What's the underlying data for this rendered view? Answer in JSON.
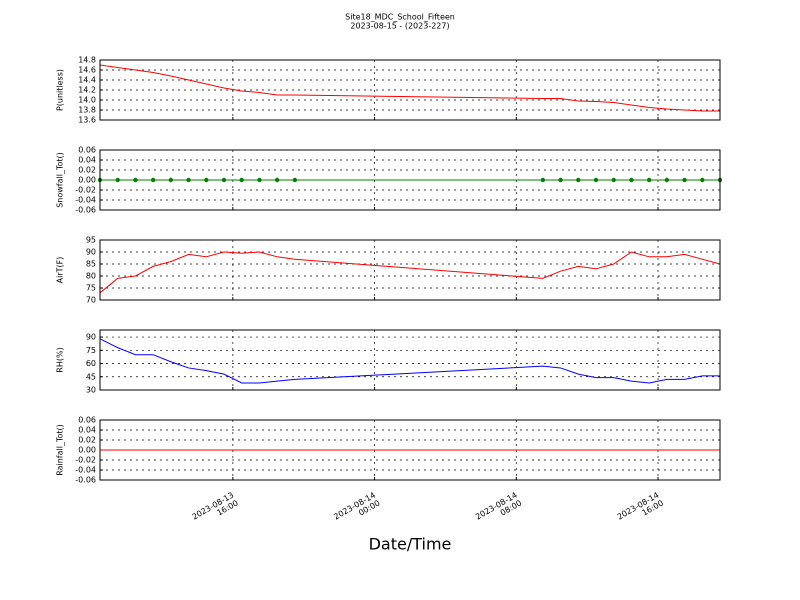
{
  "chart_data": [
    {
      "type": "line",
      "title": "Site18_MDC_School_Fifteen",
      "subtitle": "2023-08-15 - (2023-227)",
      "ylabel": "P(unitless)",
      "x": [
        "2023-08-13 08:30",
        "2023-08-13 09:30",
        "2023-08-13 10:30",
        "2023-08-13 11:30",
        "2023-08-13 12:30",
        "2023-08-13 13:30",
        "2023-08-13 14:30",
        "2023-08-13 15:30",
        "2023-08-13 16:30",
        "2023-08-13 17:30",
        "2023-08-13 18:30",
        "2023-08-13 19:30",
        "2023-08-14 09:30",
        "2023-08-14 10:30",
        "2023-08-14 11:30",
        "2023-08-14 12:30",
        "2023-08-14 13:30",
        "2023-08-14 14:30",
        "2023-08-14 15:30",
        "2023-08-14 16:30",
        "2023-08-14 17:30",
        "2023-08-14 18:30",
        "2023-08-14 19:30"
      ],
      "series": [
        {
          "color": "#ff0000",
          "values": [
            14.7,
            14.65,
            14.6,
            14.55,
            14.48,
            14.4,
            14.32,
            14.24,
            14.18,
            14.15,
            14.1,
            14.1,
            14.03,
            14.03,
            13.98,
            13.97,
            13.95,
            13.9,
            13.85,
            13.82,
            13.8,
            13.78,
            13.78
          ]
        }
      ],
      "xlim": [
        "2023-08-13 08:30",
        "2023-08-14 19:30"
      ],
      "xticks": [
        "2023-08-13 16:00",
        "2023-08-14 00:00",
        "2023-08-14 08:00",
        "2023-08-14 16:00"
      ],
      "ylim": [
        13.6,
        14.8
      ],
      "yticks": [
        {
          "value": 13.6,
          "label": "13.6"
        },
        {
          "value": 13.8,
          "label": "13.8"
        },
        {
          "value": 14.0,
          "label": "14.0"
        },
        {
          "value": 14.2,
          "label": "14.2"
        },
        {
          "value": 14.4,
          "label": "14.4"
        },
        {
          "value": 14.6,
          "label": "14.6"
        },
        {
          "value": 14.8,
          "label": "14.8"
        }
      ],
      "grid": true
    },
    {
      "type": "scatter-line",
      "ylabel": "Snowfall_Tot()",
      "x": [
        "2023-08-13 08:30",
        "2023-08-13 09:30",
        "2023-08-13 10:30",
        "2023-08-13 11:30",
        "2023-08-13 12:30",
        "2023-08-13 13:30",
        "2023-08-13 14:30",
        "2023-08-13 15:30",
        "2023-08-13 16:30",
        "2023-08-13 17:30",
        "2023-08-13 18:30",
        "2023-08-13 19:30",
        "2023-08-14 09:30",
        "2023-08-14 10:30",
        "2023-08-14 11:30",
        "2023-08-14 12:30",
        "2023-08-14 13:30",
        "2023-08-14 14:30",
        "2023-08-14 15:30",
        "2023-08-14 16:30",
        "2023-08-14 17:30",
        "2023-08-14 18:30",
        "2023-08-14 19:30"
      ],
      "series": [
        {
          "color": "#008000",
          "values": [
            0,
            0,
            0,
            0,
            0,
            0,
            0,
            0,
            0,
            0,
            0,
            0,
            0,
            0,
            0,
            0,
            0,
            0,
            0,
            0,
            0,
            0,
            0
          ]
        }
      ],
      "xlim": [
        "2023-08-13 08:30",
        "2023-08-14 19:30"
      ],
      "xticks": [
        "2023-08-13 16:00",
        "2023-08-14 00:00",
        "2023-08-14 08:00",
        "2023-08-14 16:00"
      ],
      "ylim": [
        -0.06,
        0.06
      ],
      "yticks": [
        {
          "value": -0.06,
          "label": "-0.06"
        },
        {
          "value": -0.04,
          "label": "-0.04"
        },
        {
          "value": -0.02,
          "label": "-0.02"
        },
        {
          "value": 0,
          "label": "0.00"
        },
        {
          "value": 0.02,
          "label": "0.02"
        },
        {
          "value": 0.04,
          "label": "0.04"
        },
        {
          "value": 0.06,
          "label": "0.06"
        }
      ],
      "grid": true
    },
    {
      "type": "line",
      "ylabel": "AirT(F)",
      "x": [
        "2023-08-13 08:30",
        "2023-08-13 09:30",
        "2023-08-13 10:30",
        "2023-08-13 11:30",
        "2023-08-13 12:30",
        "2023-08-13 13:30",
        "2023-08-13 14:30",
        "2023-08-13 15:30",
        "2023-08-13 16:30",
        "2023-08-13 17:30",
        "2023-08-13 18:30",
        "2023-08-13 19:30",
        "2023-08-14 09:30",
        "2023-08-14 10:30",
        "2023-08-14 11:30",
        "2023-08-14 12:30",
        "2023-08-14 13:30",
        "2023-08-14 14:30",
        "2023-08-14 15:30",
        "2023-08-14 16:30",
        "2023-08-14 17:30",
        "2023-08-14 18:30",
        "2023-08-14 19:30"
      ],
      "series": [
        {
          "color": "#ff0000",
          "values": [
            73,
            79,
            80,
            84,
            86,
            89,
            88,
            90,
            89.5,
            90,
            88,
            87,
            79,
            82,
            84,
            83,
            85,
            90,
            88,
            88,
            89,
            87,
            85
          ]
        }
      ],
      "xlim": [
        "2023-08-13 08:30",
        "2023-08-14 19:30"
      ],
      "xticks": [
        "2023-08-13 16:00",
        "2023-08-14 00:00",
        "2023-08-14 08:00",
        "2023-08-14 16:00"
      ],
      "ylim": [
        70,
        95
      ],
      "yticks": [
        70,
        75,
        80,
        85,
        90,
        95
      ],
      "grid": true
    },
    {
      "type": "line",
      "ylabel": "RH(%)",
      "x": [
        "2023-08-13 08:30",
        "2023-08-13 09:30",
        "2023-08-13 10:30",
        "2023-08-13 11:30",
        "2023-08-13 12:30",
        "2023-08-13 13:30",
        "2023-08-13 14:30",
        "2023-08-13 15:30",
        "2023-08-13 16:30",
        "2023-08-13 17:30",
        "2023-08-13 18:30",
        "2023-08-13 19:30",
        "2023-08-14 09:30",
        "2023-08-14 10:30",
        "2023-08-14 11:30",
        "2023-08-14 12:30",
        "2023-08-14 13:30",
        "2023-08-14 14:30",
        "2023-08-14 15:30",
        "2023-08-14 16:30",
        "2023-08-14 17:30",
        "2023-08-14 18:30",
        "2023-08-14 19:30"
      ],
      "series": [
        {
          "color": "#0000ff",
          "values": [
            88,
            78,
            70,
            70,
            62,
            55,
            52,
            48,
            38,
            38,
            40,
            42,
            57,
            55,
            48,
            44,
            44,
            40,
            38,
            42,
            42,
            46,
            46
          ]
        }
      ],
      "xlim": [
        "2023-08-13 08:30",
        "2023-08-14 19:30"
      ],
      "xticks": [
        "2023-08-13 16:00",
        "2023-08-14 00:00",
        "2023-08-14 08:00",
        "2023-08-14 16:00"
      ],
      "ylim": [
        30,
        98
      ],
      "yticks": [
        30,
        45,
        60,
        75,
        90
      ],
      "grid": true
    },
    {
      "type": "line",
      "ylabel": "Rainfall_Tot()",
      "xlabel": "Date/Time",
      "x": [
        "2023-08-13 08:30",
        "2023-08-13 09:30",
        "2023-08-13 10:30",
        "2023-08-13 11:30",
        "2023-08-13 12:30",
        "2023-08-13 13:30",
        "2023-08-13 14:30",
        "2023-08-13 15:30",
        "2023-08-13 16:30",
        "2023-08-13 17:30",
        "2023-08-13 18:30",
        "2023-08-13 19:30",
        "2023-08-14 09:30",
        "2023-08-14 10:30",
        "2023-08-14 11:30",
        "2023-08-14 12:30",
        "2023-08-14 13:30",
        "2023-08-14 14:30",
        "2023-08-14 15:30",
        "2023-08-14 16:30",
        "2023-08-14 17:30",
        "2023-08-14 18:30",
        "2023-08-14 19:30"
      ],
      "series": [
        {
          "color": "#ff0000",
          "values": [
            0,
            0,
            0,
            0,
            0,
            0,
            0,
            0,
            0,
            0,
            0,
            0,
            0,
            0,
            0,
            0,
            0,
            0,
            0,
            0,
            0,
            0,
            0
          ]
        }
      ],
      "xlim": [
        "2023-08-13 08:30",
        "2023-08-14 19:30"
      ],
      "xticks": [
        "2023-08-13 16:00",
        "2023-08-14 00:00",
        "2023-08-14 08:00",
        "2023-08-14 16:00"
      ],
      "show_xtick_labels": true,
      "ylim": [
        -0.06,
        0.06
      ],
      "yticks": [
        {
          "value": -0.06,
          "label": "-0.06"
        },
        {
          "value": -0.04,
          "label": "-0.04"
        },
        {
          "value": -0.02,
          "label": "-0.02"
        },
        {
          "value": 0,
          "label": "0.00"
        },
        {
          "value": 0.02,
          "label": "0.02"
        },
        {
          "value": 0.04,
          "label": "0.04"
        },
        {
          "value": 0.06,
          "label": "0.06"
        }
      ],
      "grid": true
    }
  ]
}
